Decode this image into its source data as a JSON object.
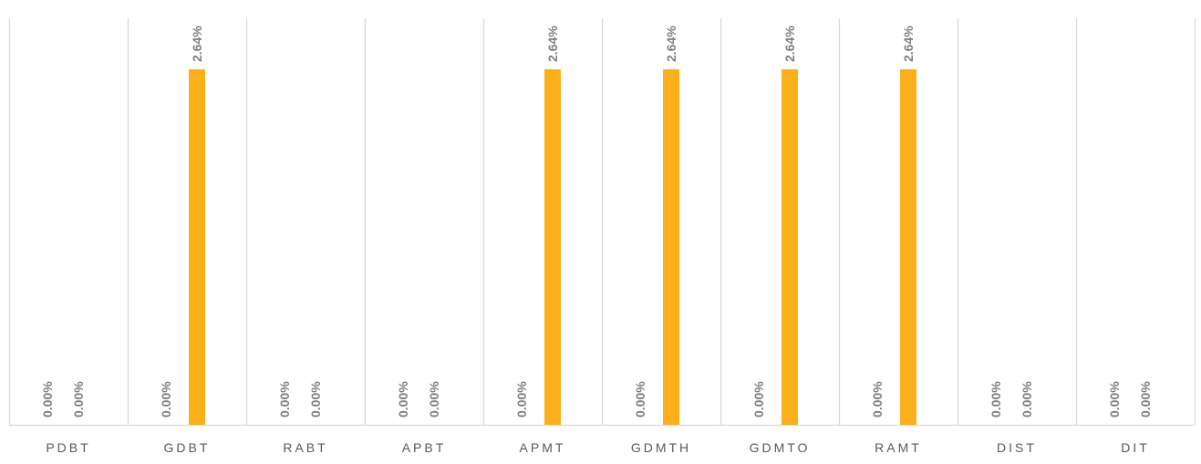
{
  "chart_data": {
    "type": "bar",
    "categories": [
      "PDBT",
      "GDBT",
      "RABT",
      "APBT",
      "APMT",
      "GDMTH",
      "GDMTO",
      "RAMT",
      "DIST",
      "DIT"
    ],
    "series": [
      {
        "values": [
          0,
          0,
          0,
          0,
          0,
          0,
          0,
          0,
          0,
          0
        ],
        "color": "#a5a5a5"
      },
      {
        "values": [
          0,
          2.64,
          0,
          0,
          2.64,
          2.64,
          2.64,
          2.64,
          0,
          0
        ],
        "color": "#fbb01b"
      }
    ],
    "value_labels": [
      [
        "0.00%",
        "0.00%",
        "0.00%",
        "0.00%",
        "0.00%",
        "0.00%",
        "0.00%",
        "0.00%",
        "0.00%",
        "0.00%"
      ],
      [
        "0.00%",
        "2.64%",
        "0.00%",
        "0.00%",
        "2.64%",
        "2.64%",
        "2.64%",
        "2.64%",
        "0.00%",
        "0.00%"
      ]
    ],
    "ylim": [
      0,
      2.64
    ],
    "title": "",
    "xlabel": "",
    "ylabel": "",
    "grid": "vertical category separators",
    "legend": "none",
    "colors": {
      "gridline": "#d9d9d9",
      "label": "#7f7f7f",
      "axis_label": "#595959"
    }
  }
}
